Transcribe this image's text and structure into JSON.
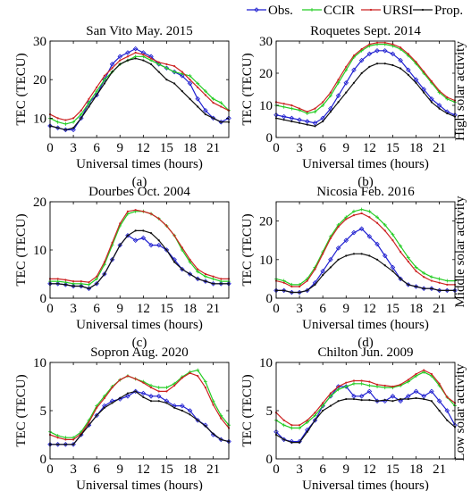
{
  "legend": {
    "entries": [
      {
        "label": "Obs.",
        "color": "#1f1fd0",
        "marker": "diamond"
      },
      {
        "label": "CCIR",
        "color": "#22cc22",
        "marker": "plus"
      },
      {
        "label": "URSI",
        "color": "#cc2222",
        "marker": "dot"
      },
      {
        "label": "Prop.",
        "color": "#111111",
        "marker": "dot"
      }
    ]
  },
  "row_labels": [
    {
      "row": 0,
      "text": "High solar activity"
    },
    {
      "row": 1,
      "text": "Middle solar activity"
    },
    {
      "row": 2,
      "text": "Low solar activity"
    }
  ],
  "chart_data": [
    {
      "type": "line",
      "title": "San Vito May. 2015",
      "panel": "(a)",
      "xlabel": "Universal times (hours)",
      "ylabel": "TEC (TECU)",
      "xlim": [
        0,
        23
      ],
      "ylim": [
        5,
        30
      ],
      "xticks": [
        0,
        3,
        6,
        9,
        12,
        15,
        18,
        21
      ],
      "yticks": [
        10,
        20,
        30
      ],
      "x": [
        0,
        1,
        2,
        3,
        4,
        5,
        6,
        7,
        8,
        9,
        10,
        11,
        12,
        13,
        14,
        15,
        16,
        17,
        18,
        19,
        20,
        21,
        22,
        23
      ],
      "series": [
        {
          "name": "Obs.",
          "values": [
            8,
            7.5,
            7,
            7,
            10,
            14,
            16,
            20,
            24,
            26,
            27,
            28,
            27,
            26,
            24,
            23,
            22,
            21,
            19,
            15,
            12,
            10,
            9,
            10
          ]
        },
        {
          "name": "CCIR",
          "values": [
            10,
            9,
            8.5,
            9,
            11,
            14,
            17,
            20,
            22,
            24,
            25,
            26,
            26,
            25,
            24,
            23,
            22,
            21.5,
            21,
            19,
            17,
            15,
            14,
            12
          ]
        },
        {
          "name": "URSI",
          "values": [
            11,
            10,
            9.5,
            10,
            12,
            15,
            18,
            21,
            23,
            25,
            26,
            27,
            26.5,
            25.5,
            24.5,
            24,
            23.5,
            22,
            20,
            18,
            16,
            14,
            13,
            12
          ]
        },
        {
          "name": "Prop.",
          "values": [
            8,
            7.5,
            7,
            7.5,
            10,
            13,
            16,
            19,
            22,
            24,
            25,
            25.5,
            25,
            24,
            22,
            20,
            19,
            17,
            15,
            13,
            11,
            10,
            9,
            9
          ]
        }
      ]
    },
    {
      "type": "line",
      "title": "Roquetes Sept. 2014",
      "panel": "(b)",
      "xlabel": "Universal times (hours)",
      "ylabel": "TEC (TECU)",
      "xlim": [
        0,
        23
      ],
      "ylim": [
        0,
        30
      ],
      "xticks": [
        0,
        3,
        6,
        9,
        12,
        15,
        18,
        21
      ],
      "yticks": [
        0,
        10,
        20,
        30
      ],
      "x": [
        0,
        1,
        2,
        3,
        4,
        5,
        6,
        7,
        8,
        9,
        10,
        11,
        12,
        13,
        14,
        15,
        16,
        17,
        18,
        19,
        20,
        21,
        22,
        23
      ],
      "series": [
        {
          "name": "Obs.",
          "values": [
            7,
            6.5,
            6,
            5.5,
            5,
            4.5,
            6,
            9,
            13,
            17,
            21,
            24,
            26,
            27,
            27,
            26,
            24,
            21,
            18,
            15,
            12,
            10,
            8,
            7
          ]
        },
        {
          "name": "CCIR",
          "values": [
            10,
            9.5,
            9,
            8.5,
            7.5,
            8,
            10,
            13,
            17,
            21,
            25,
            27,
            28.5,
            29,
            29,
            28.5,
            27.5,
            25.5,
            23,
            20,
            17,
            14,
            12,
            11
          ]
        },
        {
          "name": "URSI",
          "values": [
            11,
            10.5,
            10,
            9,
            8,
            9,
            11,
            14,
            18,
            22,
            25.5,
            27.5,
            29,
            29.5,
            29.5,
            29,
            28,
            26,
            23.5,
            20.5,
            17.5,
            14.5,
            12.5,
            11.5
          ]
        },
        {
          "name": "Prop.",
          "values": [
            6,
            5.5,
            5,
            4.5,
            4,
            3.5,
            5,
            8,
            11,
            14,
            17,
            20,
            22,
            23,
            23,
            22.5,
            21.5,
            19.5,
            17,
            14,
            11,
            9,
            7.5,
            6.5
          ]
        }
      ]
    },
    {
      "type": "line",
      "title": "Dourbes Oct. 2004",
      "panel": "(c)",
      "xlabel": "Universal times (hours)",
      "ylabel": "TEC (TECU)",
      "xlim": [
        0,
        23
      ],
      "ylim": [
        0,
        20
      ],
      "xticks": [
        0,
        3,
        6,
        9,
        12,
        15,
        18,
        21
      ],
      "yticks": [
        0,
        10,
        20
      ],
      "x": [
        0,
        1,
        2,
        3,
        4,
        5,
        6,
        7,
        8,
        9,
        10,
        11,
        12,
        13,
        14,
        15,
        16,
        17,
        18,
        19,
        20,
        21,
        22,
        23
      ],
      "series": [
        {
          "name": "Obs.",
          "values": [
            3,
            3,
            2.8,
            2.5,
            2.5,
            2,
            3,
            5,
            8,
            11,
            13,
            12,
            12.5,
            11,
            11,
            10,
            8,
            6,
            5,
            4,
            3.5,
            3,
            3,
            3
          ]
        },
        {
          "name": "CCIR",
          "values": [
            3.5,
            3.5,
            3.3,
            3,
            3,
            2.8,
            4,
            7,
            11,
            15,
            17.5,
            18,
            18,
            17.5,
            16.5,
            15,
            13,
            10,
            7.5,
            5.5,
            4.5,
            4,
            3.5,
            3.5
          ]
        },
        {
          "name": "URSI",
          "values": [
            4,
            4,
            3.8,
            3.5,
            3.5,
            3.3,
            4.5,
            7.5,
            11.5,
            15.5,
            18,
            18.3,
            18,
            17.5,
            16.5,
            15,
            13,
            10.5,
            8,
            6,
            5,
            4.5,
            4,
            4
          ]
        },
        {
          "name": "Prop.",
          "values": [
            3,
            3,
            2.8,
            2.5,
            2.5,
            2,
            3,
            5,
            8,
            11,
            13,
            14,
            14,
            13.5,
            12,
            10,
            7.5,
            6,
            5,
            4,
            3.5,
            3,
            3,
            3
          ]
        }
      ]
    },
    {
      "type": "line",
      "title": "Nicosia Feb. 2016",
      "panel": "(d)",
      "xlabel": "Universal times (hours)",
      "ylabel": "TEC (TECU)",
      "xlim": [
        0,
        23
      ],
      "ylim": [
        0,
        25
      ],
      "xticks": [
        0,
        3,
        6,
        9,
        12,
        15,
        18,
        21
      ],
      "yticks": [
        0,
        10,
        20
      ],
      "x": [
        0,
        1,
        2,
        3,
        4,
        5,
        6,
        7,
        8,
        9,
        10,
        11,
        12,
        13,
        14,
        15,
        16,
        17,
        18,
        19,
        20,
        21,
        22,
        23
      ],
      "series": [
        {
          "name": "Obs.",
          "values": [
            2,
            2,
            1.5,
            1.5,
            2,
            4,
            7,
            10,
            13,
            15,
            17,
            18,
            16,
            14,
            11,
            8,
            5,
            3.5,
            3,
            2.5,
            2.5,
            2,
            2,
            2
          ]
        },
        {
          "name": "CCIR",
          "values": [
            5,
            4.5,
            3.5,
            3.5,
            5,
            8,
            12,
            16,
            19,
            21,
            22.5,
            23,
            22.5,
            21,
            19,
            16.5,
            13.5,
            10.5,
            8,
            6.5,
            5.5,
            5,
            4.5,
            4.5
          ]
        },
        {
          "name": "URSI",
          "values": [
            4.5,
            4,
            3,
            3,
            4.5,
            7.5,
            11.5,
            15.5,
            18.5,
            20.5,
            21.5,
            22,
            21,
            19.5,
            17.5,
            15,
            12,
            9.5,
            7,
            5.5,
            4.5,
            4,
            3.5,
            3.5
          ]
        },
        {
          "name": "Prop.",
          "values": [
            2,
            2,
            1.5,
            1.5,
            2,
            3.5,
            6,
            8,
            10,
            11,
            11.5,
            11.5,
            11,
            10,
            8.5,
            7,
            5,
            3.5,
            3,
            2.5,
            2.5,
            2,
            2,
            2
          ]
        }
      ]
    },
    {
      "type": "line",
      "title": "Sopron Aug. 2020",
      "panel": "(e)",
      "xlabel": "Universal times (hours)",
      "ylabel": "TEC (TECU)",
      "xlim": [
        0,
        23
      ],
      "ylim": [
        0,
        10
      ],
      "xticks": [
        0,
        3,
        6,
        9,
        12,
        15,
        18,
        21
      ],
      "yticks": [
        0,
        5,
        10
      ],
      "x": [
        0,
        1,
        2,
        3,
        4,
        5,
        6,
        7,
        8,
        9,
        10,
        11,
        12,
        13,
        14,
        15,
        16,
        17,
        18,
        19,
        20,
        21,
        22,
        23
      ],
      "series": [
        {
          "name": "Obs.",
          "values": [
            1.5,
            1.5,
            1.5,
            1.5,
            2.5,
            3.5,
            4.5,
            5.5,
            6,
            6.2,
            6.5,
            7,
            6.8,
            6.5,
            6.5,
            6,
            5.5,
            5.5,
            5,
            4,
            3.5,
            2.5,
            2,
            1.8
          ]
        },
        {
          "name": "CCIR",
          "values": [
            2.8,
            2.4,
            2.2,
            2.2,
            2.8,
            4,
            5.5,
            6.5,
            7.5,
            8.2,
            8.6,
            8.3,
            8,
            7.6,
            7.4,
            7.4,
            7.8,
            8.5,
            9,
            9.2,
            8,
            6,
            4.5,
            3.5
          ]
        },
        {
          "name": "URSI",
          "values": [
            2.5,
            2.2,
            2,
            2,
            2.6,
            3.8,
            5.3,
            6.3,
            7.4,
            8.2,
            8.6,
            8.3,
            7.9,
            7.4,
            7,
            7,
            7.6,
            8.4,
            8.9,
            8.6,
            7.4,
            5.6,
            4.2,
            3.2
          ]
        },
        {
          "name": "Prop.",
          "values": [
            1.5,
            1.5,
            1.5,
            1.5,
            2.5,
            3.5,
            4.5,
            5.3,
            5.8,
            6.3,
            6.8,
            7,
            6.4,
            6,
            6,
            5.8,
            5.3,
            5,
            4.6,
            4,
            3.4,
            2.6,
            2,
            1.8
          ]
        }
      ]
    },
    {
      "type": "line",
      "title": "Chilton Jun. 2009",
      "panel": "(f)",
      "xlabel": "Universal times (hours)",
      "ylabel": "TEC (TECU)",
      "xlim": [
        0,
        23
      ],
      "ylim": [
        0,
        10
      ],
      "xticks": [
        0,
        3,
        6,
        9,
        12,
        15,
        18,
        21
      ],
      "yticks": [
        0,
        5,
        10
      ],
      "x": [
        0,
        1,
        2,
        3,
        4,
        5,
        6,
        7,
        8,
        9,
        10,
        11,
        12,
        13,
        14,
        15,
        16,
        17,
        18,
        19,
        20,
        21,
        22,
        23
      ],
      "series": [
        {
          "name": "Obs.",
          "values": [
            2.8,
            2,
            1.8,
            1.8,
            3,
            4,
            5.5,
            6.5,
            7.5,
            7.5,
            6.5,
            6.5,
            7,
            6,
            6,
            6.5,
            6,
            6.5,
            7,
            6.5,
            7,
            6,
            5,
            3.5
          ]
        },
        {
          "name": "CCIR",
          "values": [
            4,
            3.5,
            3.2,
            3.2,
            3.8,
            4.5,
            5.5,
            6.5,
            7.2,
            7.5,
            7.8,
            7.8,
            7.6,
            7.5,
            7.4,
            7.4,
            7.6,
            8,
            8.6,
            9,
            8.6,
            7.6,
            6.4,
            5.5
          ]
        },
        {
          "name": "URSI",
          "values": [
            4.8,
            4,
            3.5,
            3.5,
            4,
            4.8,
            5.8,
            6.8,
            7.5,
            7.9,
            8.1,
            8.1,
            8,
            7.7,
            7.6,
            7.5,
            7.7,
            8.2,
            8.8,
            9.2,
            8.8,
            7.8,
            6.4,
            5.8
          ]
        },
        {
          "name": "Prop.",
          "values": [
            2.5,
            2,
            1.7,
            1.7,
            2.8,
            4,
            5,
            5.5,
            6,
            6.2,
            6.2,
            6.1,
            6.1,
            6,
            6.1,
            6,
            6.2,
            6.2,
            6.3,
            6.2,
            6,
            5,
            4,
            3.3
          ]
        }
      ]
    }
  ]
}
